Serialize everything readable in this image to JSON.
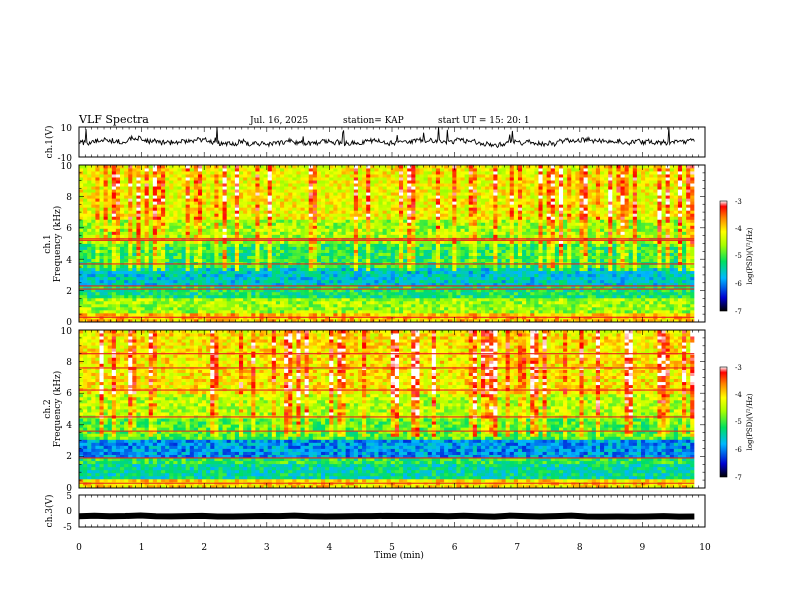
{
  "chart_data": {
    "type": "heatmap",
    "header": {
      "title": "VLF Spectra",
      "date": "Jul. 16, 2025",
      "station": "station= KAP",
      "start": "start  UT =   15: 20: 1"
    },
    "x_axis": {
      "label": "Time (min)",
      "range": [
        0,
        10
      ],
      "ticks": [
        "0",
        "1",
        "2",
        "3",
        "4",
        "5",
        "6",
        "7",
        "8",
        "9",
        "10"
      ],
      "data_end": 9.83
    },
    "panels": [
      {
        "type": "line",
        "name": "ch1-waveform",
        "ylabel": "ch.1(V)",
        "ylim": [
          -10,
          10
        ],
        "yticks": [
          "10",
          "-10"
        ],
        "baseline": 0,
        "noise_amplitude": 3,
        "color": "#000000"
      },
      {
        "type": "heatmap",
        "name": "ch1-spectrogram",
        "ylabel": "Frequency (kHz)",
        "channel_label": "ch.1",
        "ylim": [
          0,
          10
        ],
        "yticks": [
          "0",
          "2",
          "4",
          "6",
          "8",
          "10"
        ],
        "colorbar": {
          "label": "log(PSD)(V²/Hz)",
          "range": [
            -7,
            -3
          ],
          "ticks": [
            "-3",
            "-4",
            "-5",
            "-6",
            "-7"
          ]
        },
        "bands": [
          {
            "from": 0,
            "to": 0.6,
            "level": -3.9
          },
          {
            "from": 0.6,
            "to": 1.5,
            "level": -4.6
          },
          {
            "from": 1.5,
            "to": 2.3,
            "level": -5.2
          },
          {
            "from": 2.3,
            "to": 3.5,
            "level": -5.6
          },
          {
            "from": 3.5,
            "to": 5.0,
            "level": -5.1
          },
          {
            "from": 5.0,
            "to": 6.5,
            "level": -4.6
          },
          {
            "from": 6.5,
            "to": 10.0,
            "level": -4.2
          }
        ],
        "lines_khz": [
          0.3,
          2.1,
          2.3,
          3.7,
          5.2,
          5.3
        ]
      },
      {
        "type": "heatmap",
        "name": "ch2-spectrogram",
        "ylabel": "Frequency (kHz)",
        "channel_label": "ch.2",
        "ylim": [
          0,
          10
        ],
        "yticks": [
          "0",
          "2",
          "4",
          "6",
          "8",
          "10"
        ],
        "colorbar": {
          "label": "log(PSD)(V²/Hz)",
          "range": [
            -7,
            -3
          ],
          "ticks": [
            "-3",
            "-4",
            "-5",
            "-6",
            "-7"
          ]
        },
        "bands": [
          {
            "from": 0,
            "to": 0.6,
            "level": -4.0
          },
          {
            "from": 0.6,
            "to": 1.6,
            "level": -5.4
          },
          {
            "from": 1.6,
            "to": 2.0,
            "level": -5.1
          },
          {
            "from": 2.0,
            "to": 3.1,
            "level": -5.9
          },
          {
            "from": 3.1,
            "to": 4.5,
            "level": -4.9
          },
          {
            "from": 4.5,
            "to": 6.0,
            "level": -4.5
          },
          {
            "from": 6.0,
            "to": 10.0,
            "level": -4.1
          }
        ],
        "lines_khz": [
          0.3,
          1.9,
          3.6,
          4.5,
          6.2,
          7.6,
          8.5
        ]
      },
      {
        "type": "line",
        "name": "ch3-waveform",
        "ylabel": "ch.3(V)",
        "ylim": [
          -5,
          5
        ],
        "yticks": [
          "5",
          "0",
          "-5"
        ],
        "baseline": -1.6,
        "noise_amplitude": 0.3,
        "color": "#000000"
      }
    ]
  }
}
